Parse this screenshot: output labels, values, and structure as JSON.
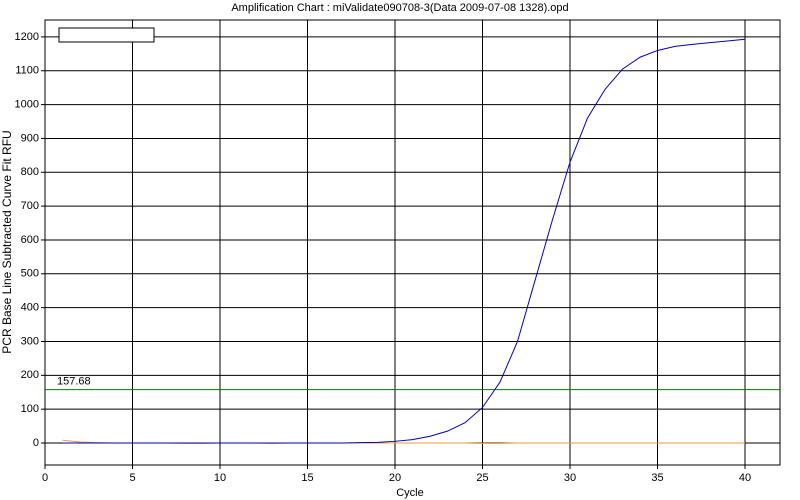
{
  "chart_data": {
    "type": "line",
    "title": "Amplification Chart : miValidate090708-3(Data 2009-07-08 1328).opd",
    "x_label": "Cycle",
    "y_label": "PCR Base Line Subtracted Curve Fit RFU",
    "x": [
      1,
      2,
      3,
      4,
      5,
      6,
      7,
      8,
      9,
      10,
      11,
      12,
      13,
      14,
      15,
      16,
      17,
      18,
      19,
      20,
      21,
      22,
      23,
      24,
      25,
      26,
      27,
      28,
      29,
      30,
      31,
      32,
      33,
      34,
      35,
      36,
      37,
      38,
      39,
      40
    ],
    "series": [
      {
        "color": "#0000c0",
        "values": [
          0,
          0,
          0,
          0,
          0,
          0,
          0,
          0,
          0,
          0,
          0,
          0,
          0,
          0,
          0,
          0,
          0,
          1,
          2,
          5,
          10,
          20,
          35,
          60,
          105,
          180,
          300,
          480,
          660,
          830,
          960,
          1045,
          1105,
          1140,
          1160,
          1172,
          1178,
          1183,
          1188,
          1193
        ]
      },
      {
        "color": "#e89a3c",
        "values": [
          8,
          3,
          1,
          0,
          0,
          0,
          0,
          -1,
          -1,
          0,
          0,
          0,
          -1,
          0,
          0,
          0,
          0,
          0,
          0,
          0,
          0,
          0,
          0,
          0,
          -1,
          -1,
          0,
          0,
          0,
          0,
          0,
          0,
          0,
          0,
          0,
          0,
          0,
          0,
          0,
          0
        ]
      }
    ],
    "threshold": 157.68,
    "threshold_color": "#008000",
    "xlim": [
      0,
      42
    ],
    "xticks": [
      0,
      5,
      10,
      15,
      20,
      25,
      30,
      35,
      40
    ],
    "ylim": [
      -65,
      1250
    ],
    "yticks": [
      0,
      100,
      200,
      300,
      400,
      500,
      600,
      700,
      800,
      900,
      1000,
      1100,
      1200
    ],
    "grid": true
  }
}
